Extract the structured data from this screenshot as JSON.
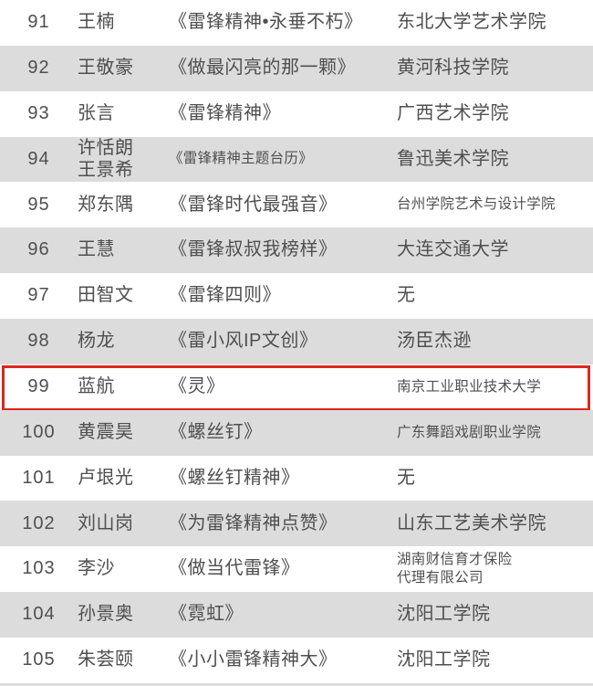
{
  "colors": {
    "stripe": "#dcdcdc",
    "text": "#4f4f4f",
    "highlight_red": "#df251f"
  },
  "highlight": {
    "row_no": "99",
    "color": "#df251f"
  },
  "table": {
    "rows": [
      {
        "no": "91",
        "name": "王楠",
        "title": "《雷锋精神•永垂不朽》",
        "org": "东北大学艺术学院"
      },
      {
        "no": "92",
        "name": "王敬豪",
        "title": "《做最闪亮的那一颗》",
        "org": "黄河科技学院"
      },
      {
        "no": "93",
        "name": "张言",
        "title": "《雷锋精神》",
        "org": "广西艺术学院"
      },
      {
        "no": "94",
        "name": "许恬朗\n王景希",
        "title": "《雷锋精神主题台历》",
        "org": "鲁迅美术学院",
        "title_small": true
      },
      {
        "no": "95",
        "name": "郑东隅",
        "title": "《雷锋时代最强音》",
        "org": "台州学院艺术与设计学院",
        "org_small": true
      },
      {
        "no": "96",
        "name": "王慧",
        "title": "《雷锋叔叔我榜样》",
        "org": "大连交通大学"
      },
      {
        "no": "97",
        "name": "田智文",
        "title": "《雷锋四则》",
        "org": "无"
      },
      {
        "no": "98",
        "name": "杨龙",
        "title": "《雷小风IP文创》",
        "org": "汤臣杰逊"
      },
      {
        "no": "99",
        "name": "蓝航",
        "title": "《灵》",
        "org": "南京工业职业技术大学",
        "org_small": true
      },
      {
        "no": "100",
        "name": "黄震昊",
        "title": "《螺丝钉》",
        "org": "广东舞蹈戏剧职业学院",
        "org_small": true
      },
      {
        "no": "101",
        "name": "卢垠光",
        "title": "《螺丝钉精神》",
        "org": "无"
      },
      {
        "no": "102",
        "name": "刘山岗",
        "title": "《为雷锋精神点赞》",
        "org": "山东工艺美术学院"
      },
      {
        "no": "103",
        "name": "李沙",
        "title": "《做当代雷锋》",
        "org": "湖南财信育才保险\n代理有限公司",
        "org_small": true
      },
      {
        "no": "104",
        "name": "孙景奥",
        "title": "《霓虹》",
        "org": "沈阳工学院"
      },
      {
        "no": "105",
        "name": "朱荟颐",
        "title": "《小小雷锋精神大》",
        "org": "沈阳工学院"
      }
    ]
  }
}
